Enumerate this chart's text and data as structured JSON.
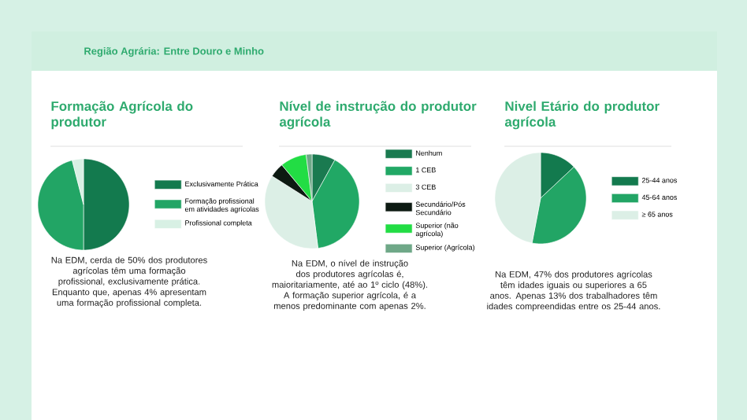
{
  "chart_data": [
    {
      "type": "other",
      "title": "Região Agrária: Entre Douro e Minho"
    },
    {
      "type": "pie",
      "title": "Formação Agrícola do produtor",
      "categories": [
        "Exclusivamente Prática",
        "Formação profissional em atividades agrícolas",
        "Profissional completa"
      ],
      "values": [
        50,
        46,
        4
      ],
      "colors": [
        "#137a4e",
        "#22a565",
        "#d8f0e4"
      ],
      "legend": "right",
      "annotations": [
        "Na EDM, cerda de 50% dos produtores agrícolas têm uma formação profissional, exclusivamente prática. Enquanto que, apenas 4% apresentam uma formação profissional completa."
      ]
    },
    {
      "type": "pie",
      "title": "Nível de instrução do produtor agrícola",
      "categories": [
        "Nenhum",
        "1 CEB",
        "3 CEB",
        "Secundário/Pós Secundário",
        "Superior (não agrícola)",
        "Superior (Agrícola)"
      ],
      "values": [
        8,
        40,
        36,
        5,
        9,
        2
      ],
      "colors": [
        "#1a7a50",
        "#21a865",
        "#dcefe6",
        "#0d1a12",
        "#22dd44",
        "#6fa888"
      ],
      "legend": "right",
      "annotations": [
        "Na EDM, o nível de instrução dos produtores agrícolas é, maioritariamente, até ao 1º ciclo (48%).",
        "A formação superior agrícola, é a menos predominante com apenas 2%."
      ]
    },
    {
      "type": "pie",
      "title": "Nivel Etário do produtor agrícola",
      "categories": [
        "25-44 anos",
        "45-64 anos",
        "≥ 65 anos"
      ],
      "values": [
        13,
        40,
        47
      ],
      "colors": [
        "#137a4e",
        "#22a565",
        "#dcefe6"
      ],
      "legend": "right",
      "annotations": [
        "Na EDM, 47% dos produtores agrícolas têm idades iguais ou superiores a 65 anos. Apenas 13% dos trabalhadores têm idades compreendidas entre os 25-44 anos."
      ]
    }
  ]
}
